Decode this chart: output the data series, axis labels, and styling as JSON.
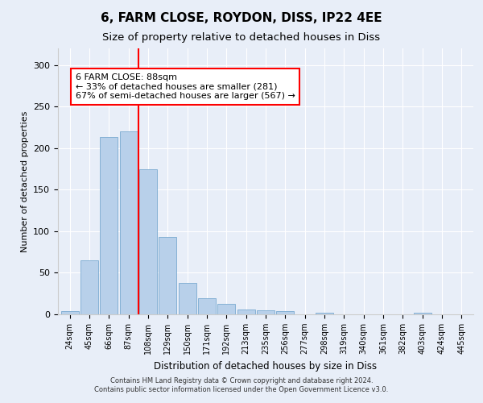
{
  "title": "6, FARM CLOSE, ROYDON, DISS, IP22 4EE",
  "subtitle": "Size of property relative to detached houses in Diss",
  "xlabel": "Distribution of detached houses by size in Diss",
  "ylabel": "Number of detached properties",
  "footer_line1": "Contains HM Land Registry data © Crown copyright and database right 2024.",
  "footer_line2": "Contains public sector information licensed under the Open Government Licence v3.0.",
  "categories": [
    "24sqm",
    "45sqm",
    "66sqm",
    "87sqm",
    "108sqm",
    "129sqm",
    "150sqm",
    "171sqm",
    "192sqm",
    "213sqm",
    "235sqm",
    "256sqm",
    "277sqm",
    "298sqm",
    "319sqm",
    "340sqm",
    "361sqm",
    "382sqm",
    "403sqm",
    "424sqm",
    "445sqm"
  ],
  "values": [
    4,
    65,
    213,
    220,
    175,
    93,
    38,
    19,
    13,
    6,
    5,
    4,
    0,
    2,
    0,
    0,
    0,
    0,
    2,
    0,
    0
  ],
  "bar_color": "#b8d0ea",
  "bar_edge_color": "#7aaad0",
  "vline_x": 3.5,
  "vline_color": "red",
  "annotation_text": "6 FARM CLOSE: 88sqm\n← 33% of detached houses are smaller (281)\n67% of semi-detached houses are larger (567) →",
  "annotation_box_color": "white",
  "annotation_box_edge_color": "red",
  "ylim": [
    0,
    320
  ],
  "yticks": [
    0,
    50,
    100,
    150,
    200,
    250,
    300
  ],
  "background_color": "#e8eef8",
  "plot_background_color": "#e8eef8",
  "grid_color": "white",
  "title_fontsize": 11,
  "subtitle_fontsize": 9.5
}
